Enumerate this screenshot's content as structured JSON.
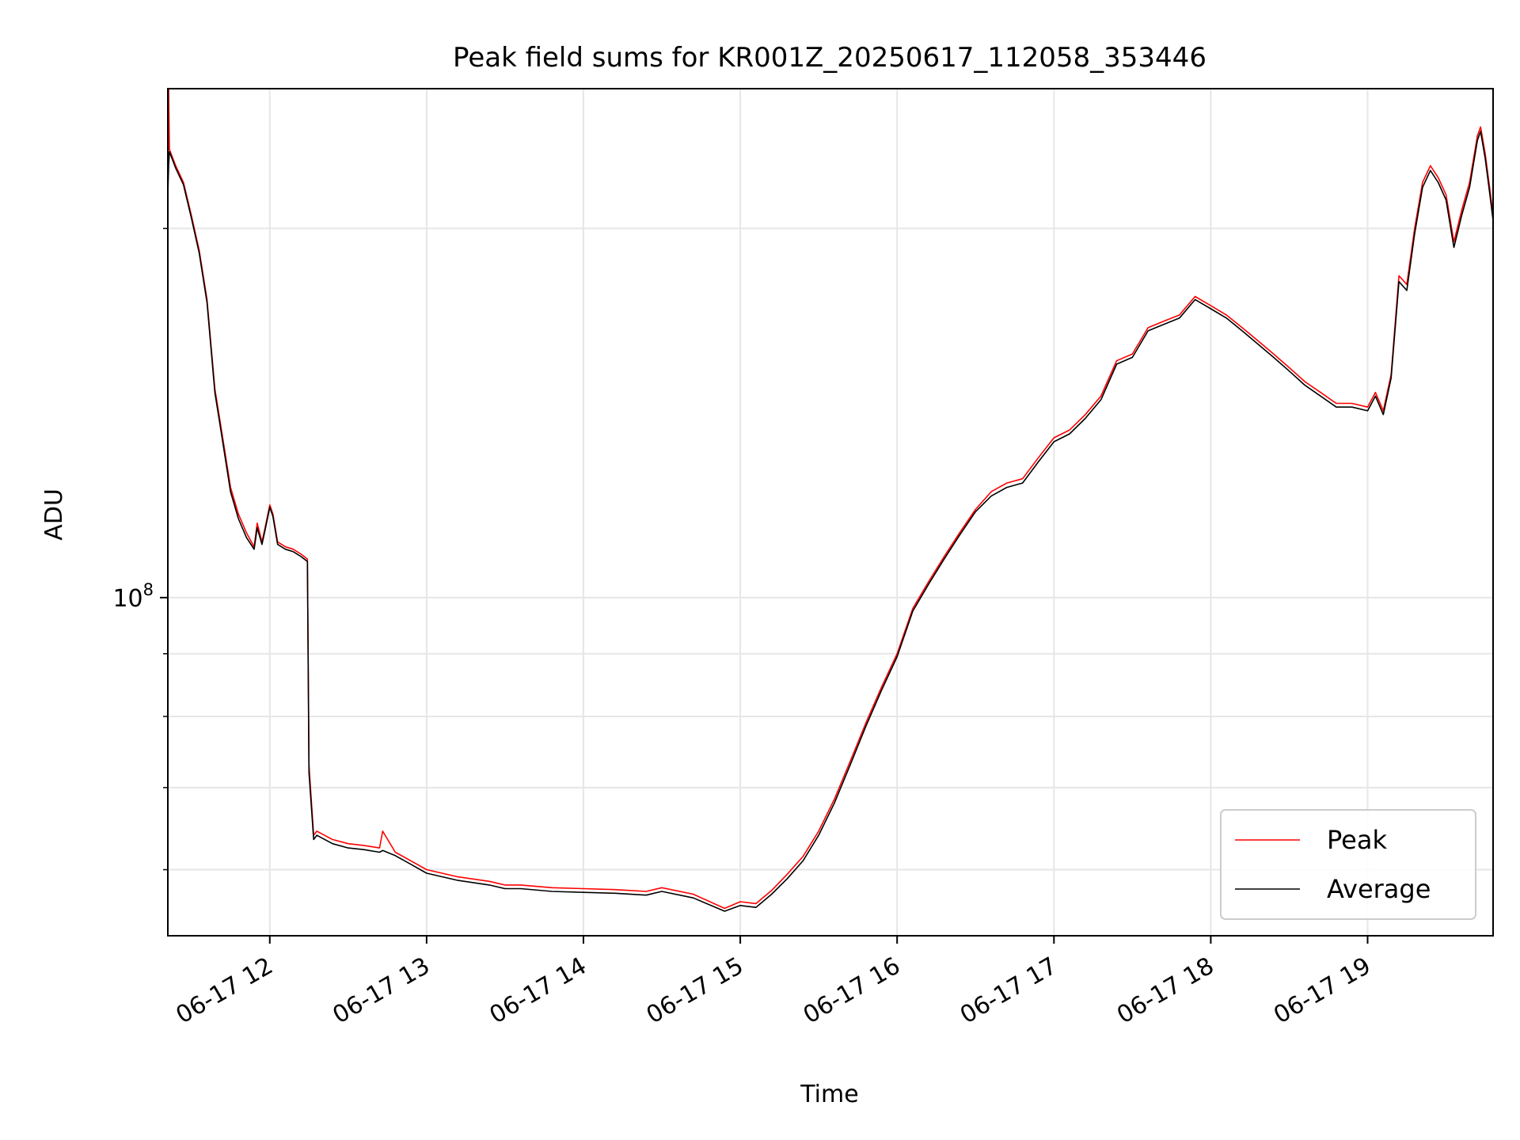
{
  "chart_data": {
    "type": "line",
    "title": "Peak field sums for KR001Z_20250617_112058_353446",
    "xlabel": "Time",
    "ylabel": "ADU",
    "x_unit": "hours of 2025-06-17",
    "xlim": [
      11.35,
      19.8
    ],
    "ylim": [
      53000000,
      260000000
    ],
    "yscale": "log",
    "x_ticks": [
      {
        "value": 12,
        "label": "06-17 12"
      },
      {
        "value": 13,
        "label": "06-17 13"
      },
      {
        "value": 14,
        "label": "06-17 14"
      },
      {
        "value": 15,
        "label": "06-17 15"
      },
      {
        "value": 16,
        "label": "06-17 16"
      },
      {
        "value": 17,
        "label": "06-17 17"
      },
      {
        "value": 18,
        "label": "06-17 18"
      },
      {
        "value": 19,
        "label": "06-17 19"
      }
    ],
    "y_major_ticks": [
      {
        "value": 100000000,
        "base": "10",
        "exp": "8"
      }
    ],
    "y_minor_ticks": [
      60000000,
      70000000,
      80000000,
      90000000,
      200000000
    ],
    "grid": true,
    "legend_position": "lower-right",
    "series": [
      {
        "name": "Peak",
        "color": "#ff0000",
        "x": [
          11.35,
          11.355,
          11.36,
          11.4,
          11.45,
          11.5,
          11.55,
          11.6,
          11.65,
          11.68,
          11.7,
          11.72,
          11.75,
          11.8,
          11.85,
          11.9,
          11.92,
          11.95,
          11.97,
          12.0,
          12.02,
          12.05,
          12.1,
          12.15,
          12.2,
          12.24,
          12.25,
          12.28,
          12.3,
          12.4,
          12.5,
          12.6,
          12.7,
          12.72,
          12.8,
          12.9,
          13.0,
          13.2,
          13.4,
          13.5,
          13.6,
          13.8,
          14.0,
          14.2,
          14.4,
          14.5,
          14.7,
          14.9,
          15.0,
          15.1,
          15.2,
          15.3,
          15.4,
          15.5,
          15.6,
          15.7,
          15.8,
          15.9,
          16.0,
          16.1,
          16.2,
          16.3,
          16.4,
          16.5,
          16.6,
          16.7,
          16.8,
          16.9,
          17.0,
          17.1,
          17.2,
          17.3,
          17.4,
          17.5,
          17.6,
          17.7,
          17.8,
          17.9,
          18.0,
          18.1,
          18.2,
          18.3,
          18.4,
          18.5,
          18.6,
          18.7,
          18.8,
          18.9,
          19.0,
          19.05,
          19.1,
          19.15,
          19.2,
          19.25,
          19.3,
          19.35,
          19.4,
          19.45,
          19.5,
          19.55,
          19.6,
          19.65,
          19.7,
          19.72,
          19.75,
          19.78,
          19.8
        ],
        "y": [
          215000000,
          260000000,
          232000000,
          225000000,
          218000000,
          205000000,
          192000000,
          175000000,
          148000000,
          140000000,
          135000000,
          130000000,
          123000000,
          117000000,
          113000000,
          110000000,
          115000000,
          111000000,
          114000000,
          119000000,
          117000000,
          111000000,
          110000000,
          109500000,
          108500000,
          107500000,
          73000000,
          64000000,
          64500000,
          63500000,
          63000000,
          62800000,
          62500000,
          64500000,
          62000000,
          61000000,
          60000000,
          59200000,
          58700000,
          58300000,
          58300000,
          58000000,
          57900000,
          57800000,
          57600000,
          58000000,
          57300000,
          55800000,
          56500000,
          56300000,
          57700000,
          59500000,
          61500000,
          64500000,
          68500000,
          73500000,
          79000000,
          84500000,
          90000000,
          98000000,
          103000000,
          108000000,
          113000000,
          118000000,
          122000000,
          124000000,
          125000000,
          130000000,
          135000000,
          137000000,
          141000000,
          146000000,
          156000000,
          158000000,
          166000000,
          168000000,
          170000000,
          176000000,
          173000000,
          170000000,
          166000000,
          162000000,
          158000000,
          154000000,
          150000000,
          147000000,
          144000000,
          144000000,
          143000000,
          147000000,
          142000000,
          152000000,
          183000000,
          180000000,
          200000000,
          218000000,
          225000000,
          220000000,
          213000000,
          195000000,
          207000000,
          218000000,
          238000000,
          242000000,
          230000000,
          215000000,
          205000000
        ]
      },
      {
        "name": "Average",
        "color": "#000000",
        "x": [
          11.35,
          11.355,
          11.36,
          11.4,
          11.45,
          11.5,
          11.55,
          11.6,
          11.65,
          11.68,
          11.7,
          11.72,
          11.75,
          11.8,
          11.85,
          11.9,
          11.92,
          11.95,
          11.97,
          12.0,
          12.02,
          12.05,
          12.1,
          12.15,
          12.2,
          12.24,
          12.25,
          12.28,
          12.3,
          12.4,
          12.5,
          12.6,
          12.7,
          12.72,
          12.8,
          12.9,
          13.0,
          13.2,
          13.4,
          13.5,
          13.6,
          13.8,
          14.0,
          14.2,
          14.4,
          14.5,
          14.7,
          14.9,
          15.0,
          15.1,
          15.2,
          15.3,
          15.4,
          15.5,
          15.6,
          15.7,
          15.8,
          15.9,
          16.0,
          16.1,
          16.2,
          16.3,
          16.4,
          16.5,
          16.6,
          16.7,
          16.8,
          16.9,
          17.0,
          17.1,
          17.2,
          17.3,
          17.4,
          17.5,
          17.6,
          17.7,
          17.8,
          17.9,
          18.0,
          18.1,
          18.2,
          18.3,
          18.4,
          18.5,
          18.6,
          18.7,
          18.8,
          18.9,
          19.0,
          19.05,
          19.1,
          19.15,
          19.2,
          19.25,
          19.3,
          19.35,
          19.4,
          19.45,
          19.5,
          19.55,
          19.6,
          19.65,
          19.7,
          19.72,
          19.75,
          19.78,
          19.8
        ],
        "y": [
          213000000,
          225000000,
          231000000,
          224000000,
          217000000,
          204000000,
          191000000,
          174000000,
          147000000,
          139000000,
          134000000,
          129000000,
          122000000,
          116000000,
          112000000,
          109500000,
          114000000,
          110500000,
          113500000,
          118500000,
          116500000,
          110500000,
          109500000,
          109000000,
          108000000,
          107000000,
          72000000,
          63500000,
          64000000,
          63000000,
          62500000,
          62300000,
          62000000,
          62200000,
          61600000,
          60600000,
          59600000,
          58800000,
          58300000,
          57900000,
          57900000,
          57600000,
          57500000,
          57400000,
          57200000,
          57600000,
          56900000,
          55500000,
          56100000,
          55900000,
          57300000,
          59000000,
          61000000,
          64000000,
          68000000,
          73000000,
          78500000,
          84000000,
          89500000,
          97500000,
          102500000,
          107500000,
          112500000,
          117500000,
          121000000,
          123000000,
          124000000,
          129000000,
          134000000,
          136000000,
          140000000,
          145000000,
          155000000,
          157000000,
          165000000,
          167000000,
          169000000,
          175000000,
          172000000,
          169000000,
          165000000,
          161000000,
          157000000,
          153000000,
          149000000,
          146000000,
          143000000,
          143000000,
          142000000,
          146000000,
          141000000,
          151000000,
          181000000,
          178000000,
          198000000,
          216000000,
          223000000,
          218000000,
          211000000,
          193000000,
          205000000,
          216000000,
          236000000,
          240000000,
          228000000,
          213000000,
          203000000
        ]
      }
    ]
  }
}
